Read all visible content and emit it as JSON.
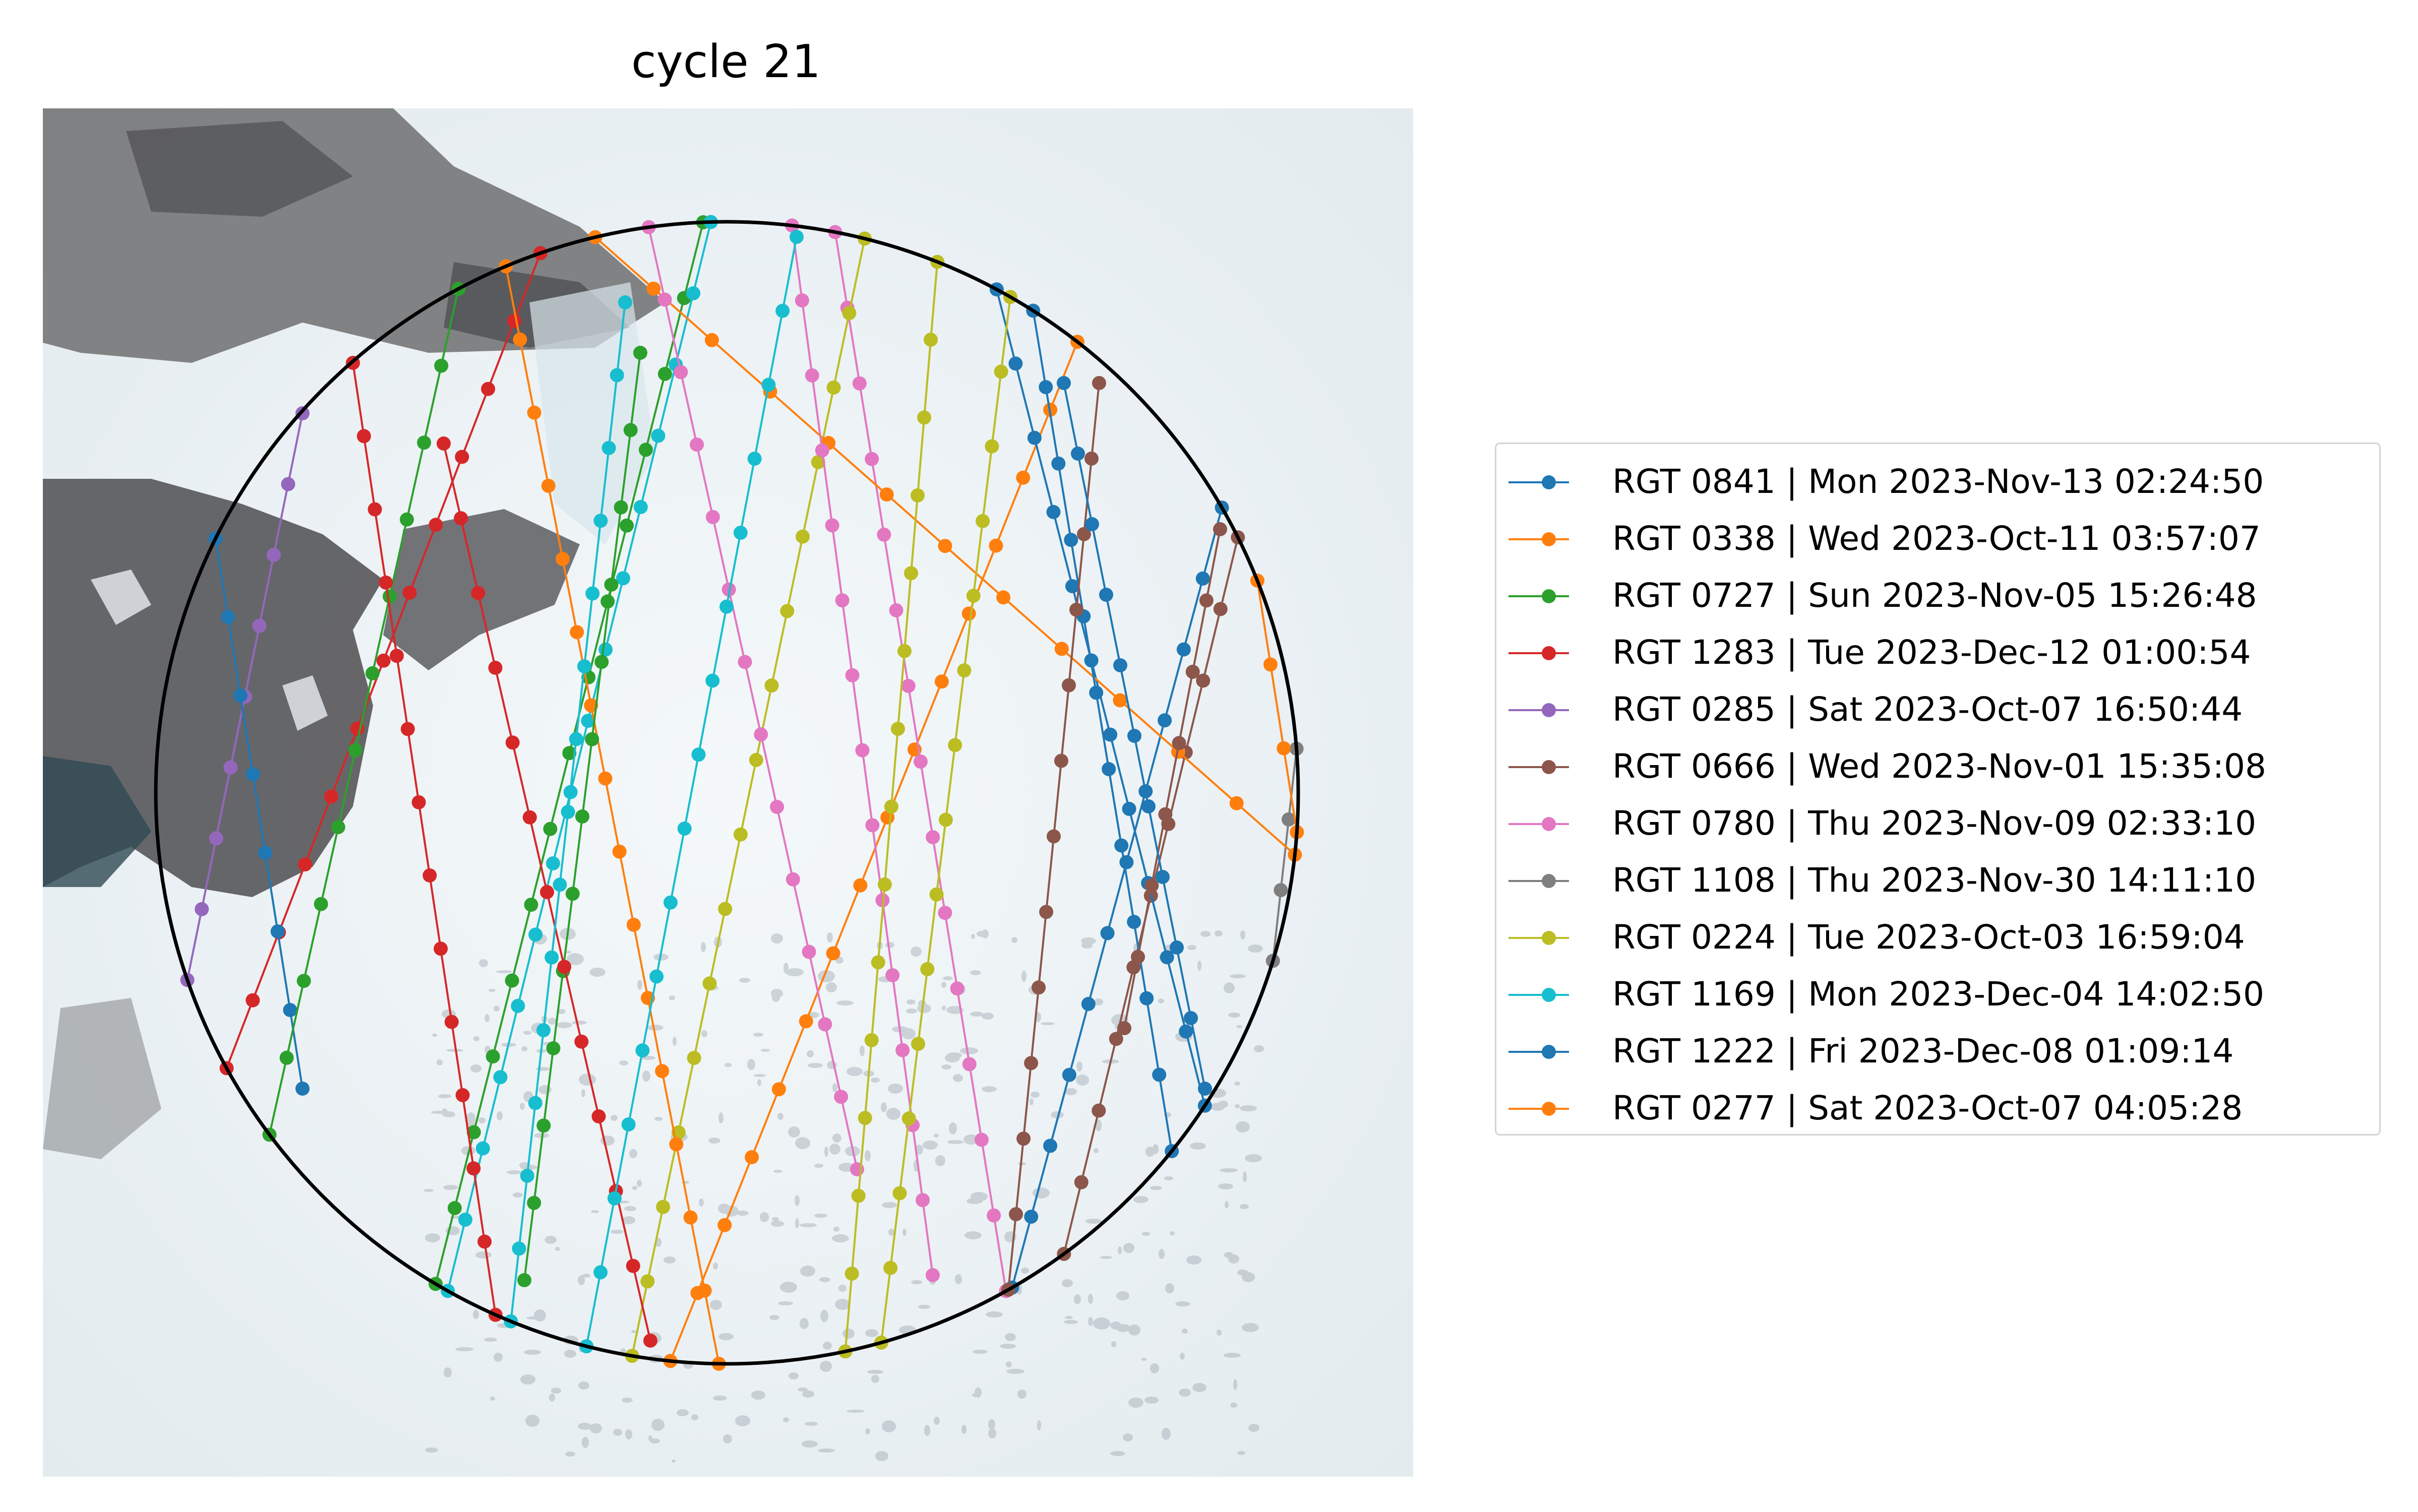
{
  "title": "cycle 21",
  "basemap": "satellite imagery (ice sheet with dark rocky terrain on left)",
  "boundary_color": "#000000",
  "chart_data": {
    "type": "map",
    "title": "cycle 21",
    "legend_placement": "right",
    "tracks": [
      {
        "label": "RGT 0841 | Mon 2023-Nov-13 02:24:50",
        "color": "#1f77b4"
      },
      {
        "label": "RGT 0338 | Wed 2023-Oct-11 03:57:07",
        "color": "#ff7f0e"
      },
      {
        "label": "RGT 0727 | Sun 2023-Nov-05 15:26:48",
        "color": "#2ca02c"
      },
      {
        "label": "RGT 1283 | Tue 2023-Dec-12 01:00:54",
        "color": "#d62728"
      },
      {
        "label": "RGT 0285 | Sat 2023-Oct-07 16:50:44",
        "color": "#9467bd"
      },
      {
        "label": "RGT 0666 | Wed 2023-Nov-01 15:35:08",
        "color": "#8c564b"
      },
      {
        "label": "RGT 0780 | Thu 2023-Nov-09 02:33:10",
        "color": "#e377c2"
      },
      {
        "label": "RGT 1108 | Thu 2023-Nov-30 14:11:10",
        "color": "#7f7f7f"
      },
      {
        "label": "RGT 0224 | Tue 2023-Oct-03 16:59:04",
        "color": "#bcbd22"
      },
      {
        "label": "RGT 1169 | Mon 2023-Dec-04 14:02:50",
        "color": "#17becf"
      },
      {
        "label": "RGT 1222 | Fri 2023-Dec-08 01:09:14",
        "color": "#1f77b4"
      },
      {
        "label": "RGT 0277 | Sat 2023-Oct-07 04:05:28",
        "color": "#ff7f0e"
      }
    ]
  }
}
